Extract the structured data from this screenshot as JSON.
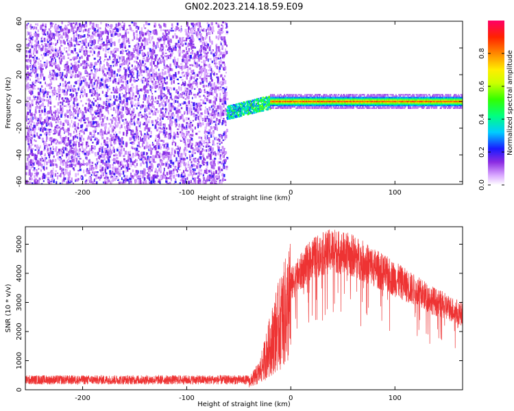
{
  "title": "GN02.2023.214.18.59.E09",
  "chart_data": [
    {
      "type": "heatmap",
      "xlabel": "Height of straight line (km)",
      "ylabel": "Frequency (Hz)",
      "xlim": [
        -255,
        165
      ],
      "ylim": [
        -62,
        60
      ],
      "xticks": [
        -200,
        -100,
        0,
        100
      ],
      "yticks": [
        -60,
        -40,
        -20,
        0,
        20,
        40,
        60
      ],
      "grid": false,
      "colorbar": {
        "label": "Normalized spectral amplitude",
        "range": [
          0,
          1
        ],
        "ticks": [
          0.0,
          0.2,
          0.4,
          0.6,
          0.8
        ],
        "tick_labels": [
          "0.0",
          "0.2",
          "0.4",
          "0.6",
          "0.8"
        ]
      },
      "regions": [
        {
          "x": [
            -255,
            -62
          ],
          "freq": [
            -62,
            60
          ],
          "amplitude": "low scattered noise (~0.1-0.2)"
        },
        {
          "x": [
            -62,
            -20
          ],
          "freq_center_from": -8,
          "freq_center_to": 0,
          "amplitude": "rising 0.3-0.5"
        },
        {
          "x": [
            -20,
            165
          ],
          "freq_center": 0,
          "amplitude": "high narrow line 0.4-0.9"
        }
      ]
    },
    {
      "type": "line",
      "xlabel": "Height of straight line (km)",
      "ylabel": "SNR (10 * v/v)",
      "xlim": [
        -255,
        165
      ],
      "ylim": [
        0,
        5600
      ],
      "xticks": [
        -200,
        -100,
        0,
        100
      ],
      "yticks": [
        0,
        1000,
        2000,
        3000,
        4000,
        5000
      ],
      "grid": false,
      "color": "#ee3333",
      "envelope": {
        "x": [
          -255,
          -40,
          -30,
          -15,
          0,
          20,
          40,
          60,
          80,
          100,
          120,
          140,
          165
        ],
        "y": [
          300,
          300,
          700,
          2300,
          3600,
          4500,
          4800,
          4600,
          4200,
          3800,
          3400,
          3000,
          2600
        ]
      }
    }
  ]
}
